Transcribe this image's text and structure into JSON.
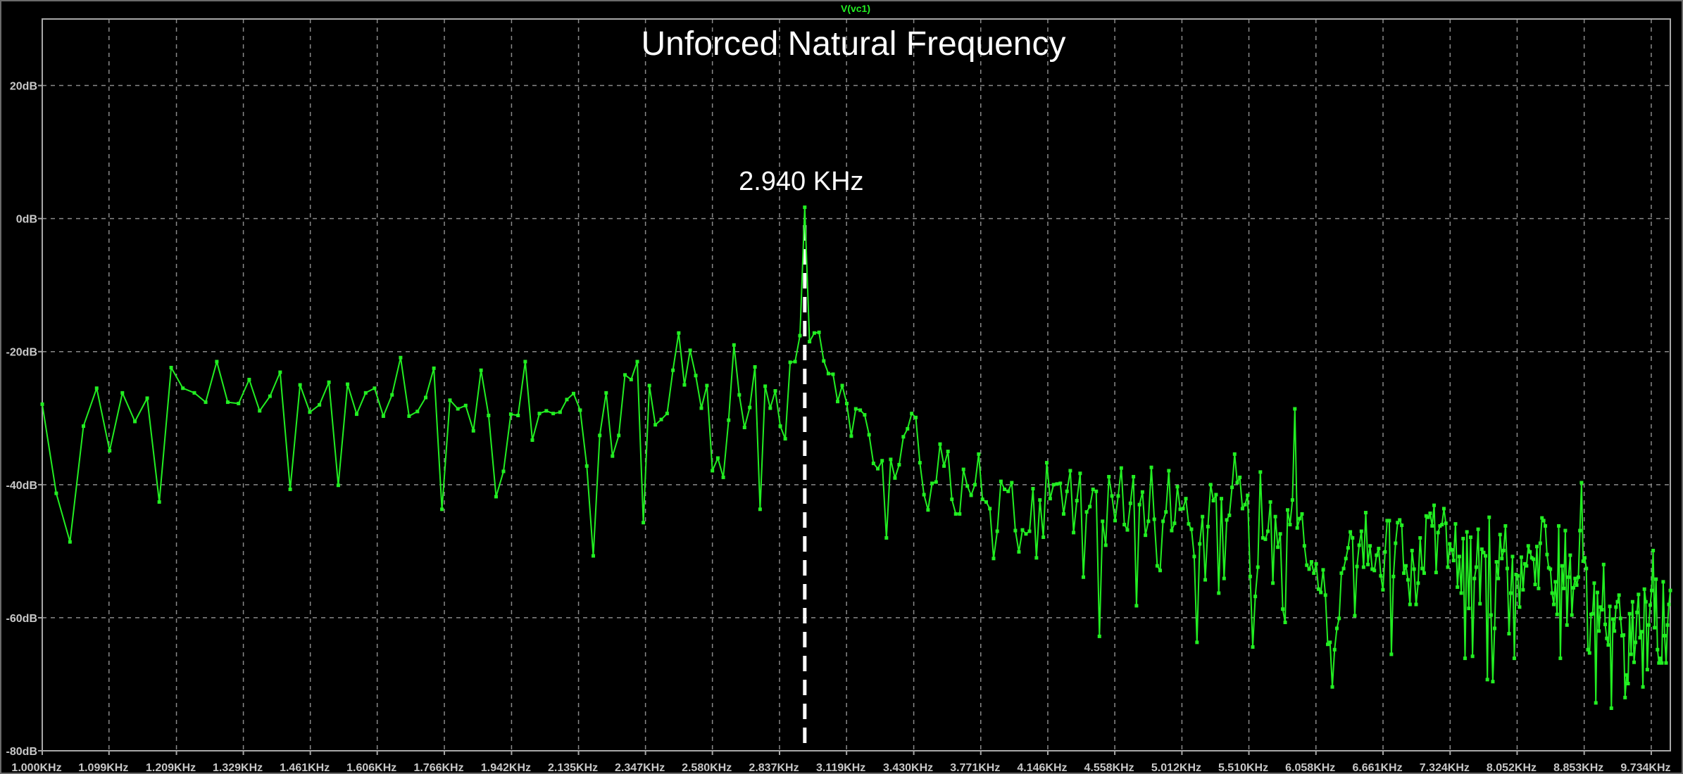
{
  "chart_data": {
    "type": "line",
    "title": "Unforced Natural Frequency",
    "trace_label": "V(vc1)",
    "x_scale": "log",
    "xlim_khz": [
      1.0,
      10.0
    ],
    "ylim_db": [
      -80,
      30
    ],
    "grid": true,
    "x_tick_values_khz": [
      1.0,
      1.099,
      1.209,
      1.329,
      1.461,
      1.606,
      1.766,
      1.942,
      2.135,
      2.347,
      2.58,
      2.837,
      3.119,
      3.43,
      3.771,
      4.146,
      4.558,
      5.012,
      5.51,
      6.058,
      6.661,
      7.324,
      8.052,
      8.853,
      9.734
    ],
    "x_tick_labels": [
      "1.000KHz",
      "1.099KHz",
      "1.209KHz",
      "1.329KHz",
      "1.461KHz",
      "1.606KHz",
      "1.766KHz",
      "1.942KHz",
      "2.135KHz",
      "2.347KHz",
      "2.580KHz",
      "2.837KHz",
      "3.119KHz",
      "3.430KHz",
      "3.771KHz",
      "4.146KHz",
      "4.558KHz",
      "5.012KHz",
      "5.510KHz",
      "6.058KHz",
      "6.661KHz",
      "7.324KHz",
      "8.052KHz",
      "8.853KHz",
      "9.734KHz"
    ],
    "y_tick_values": [
      20,
      0,
      -20,
      -40,
      -60,
      -80
    ],
    "y_tick_labels": [
      "20dB",
      "0dB",
      "-20dB",
      "-40dB",
      "-60dB",
      "-80dB"
    ],
    "annotation": {
      "frequency_khz": 2.94,
      "label": "2.940 KHz"
    },
    "series": [
      {
        "x_start_khz": 1.0,
        "x_step_khz": 0.02,
        "y_db": [
          -27.9,
          -41.3,
          -48.6,
          -31.2,
          -25.5,
          -34.9,
          -26.2,
          -30.5,
          -27.0,
          -42.6,
          -22.4,
          -25.5,
          -26.2,
          -27.6,
          -21.5,
          -27.6,
          -27.8,
          -24.2,
          -28.9,
          -26.7,
          -23.1,
          -40.7,
          -25.0,
          -29.1,
          -28.0,
          -24.6,
          -40.1,
          -24.9,
          -29.4,
          -26.2,
          -25.5,
          -29.7,
          -26.5,
          -20.9,
          -29.7,
          -29.0,
          -26.9,
          -22.5,
          -43.7,
          -27.3,
          -28.6,
          -28.1,
          -31.9,
          -22.8,
          -29.6,
          -41.8,
          -38.0,
          -29.4,
          -29.6,
          -21.5,
          -33.3,
          -29.3,
          -28.9,
          -29.3,
          -29.1,
          -27.2,
          -26.3,
          -28.8,
          -37.2,
          -50.7,
          -32.6,
          -26.2,
          -35.7,
          -32.6,
          -23.5,
          -24.2,
          -21.5,
          -45.7,
          -25.1,
          -31.0,
          -30.2,
          -29.3,
          -22.8,
          -17.2,
          -25.0,
          -19.8,
          -23.6,
          -28.5,
          -25.1,
          -37.9,
          -36.0,
          -38.9,
          -30.3,
          -19.0,
          -26.5,
          -31.4,
          -28.4,
          -22.3,
          -43.7,
          -25.2,
          -28.5,
          -25.9,
          -31.2,
          -33.1,
          -21.6,
          -21.5,
          -17.6,
          1.7,
          -18.5,
          -17.2,
          -17.1,
          -21.4,
          -23.3,
          -23.4,
          -27.5,
          -25.1,
          -27.8,
          -32.7,
          -28.6,
          -28.8,
          -29.5,
          -32.5,
          -36.8,
          -37.6,
          -36.4,
          -48.0,
          -36.2,
          -39.0,
          -37.0,
          -32.8,
          -31.6,
          -29.3,
          -29.9,
          -36.7,
          -41.5,
          -43.8,
          -39.8,
          -39.6,
          -33.9,
          -37.2,
          -35.0,
          -42.2,
          -44.4,
          -44.4,
          -37.7,
          -40.2,
          -41.6,
          -40.0,
          -35.4,
          -42.2,
          -42.6,
          -43.6,
          -51.1,
          -47.0,
          -39.5,
          -40.7,
          -41.0,
          -39.7,
          -46.9,
          -50.1,
          -46.8,
          -47.4,
          -47.0,
          -40.6,
          -51.0,
          -42.3,
          -47.9,
          -36.7,
          -42.1,
          -40.0,
          -39.9,
          -39.8,
          -44.4,
          -41.0,
          -37.9,
          -47.2,
          -42.4,
          -38.3,
          -53.9,
          -44.1,
          -43.3,
          -40.7,
          -41.0,
          -62.8,
          -45.5,
          -49.1,
          -38.8,
          -41.7,
          -45.4,
          -41.7,
          -37.5,
          -46.0,
          -46.8,
          -42.8,
          -38.8,
          -58.2,
          -43.0,
          -41.1,
          -47.6,
          -45.5,
          -37.4,
          -45.2,
          -52.2,
          -52.9,
          -45.5,
          -44.1,
          -37.9,
          -46.9,
          -45.8,
          -40.3,
          -43.7,
          -43.6,
          -42.1,
          -45.9,
          -46.7,
          -50.8,
          -63.7,
          -48.9,
          -44.8,
          -54.3,
          -46.3,
          -40.0,
          -42.4,
          -41.5,
          -56.3,
          -42.1,
          -54.1,
          -45.3,
          -44.6,
          -40.4,
          -35.4,
          -39.7,
          -38.9,
          -43.6,
          -43.0,
          -41.6,
          -53.8,
          -64.4,
          -56.8,
          -52.4,
          -38.1,
          -48.0,
          -48.2,
          -47.0,
          -42.6,
          -54.8,
          -44.8,
          -49.4,
          -47.4,
          -58.7,
          -60.7,
          -43.8,
          -46.0,
          -42.3,
          -28.6,
          -46.5,
          -45.1,
          -44.4,
          -49.2,
          -52.1,
          -52.7,
          -51.6,
          -53.3,
          -51.9,
          -55.7,
          -56.2,
          -52.8,
          -56.6,
          -64.0,
          -63.7,
          -70.4,
          -64.8,
          -61.6,
          -60.1,
          -53.3,
          -52.6,
          -51.1,
          -49.5,
          -47.1,
          -48.0,
          -59.7,
          -52.3,
          -49.1,
          -47.0,
          -52.4,
          -44.2,
          -52.0,
          -49.2,
          -52.7,
          -52.9,
          -50.6,
          -49.6,
          -53.7,
          -55.8,
          -50.1,
          -45.4,
          -45.4,
          -65.5,
          -53.8,
          -48.8,
          -45.7,
          -45.3,
          -46.1,
          -53.3,
          -52.2,
          -54.3,
          -58.0,
          -49.9,
          -52.7,
          -58.0,
          -54.8,
          -48.0,
          -52.6,
          -53.3,
          -44.7,
          -44.9,
          -44.3,
          -46.2,
          -43.1,
          -53.2,
          -47.2,
          -46.2,
          -46.0,
          -43.6,
          -45.8,
          -52.4,
          -48.9,
          -49.8,
          -51.4,
          -45.9,
          -55.4,
          -50.8,
          -56.3,
          -48.1,
          -66.1,
          -47.1,
          -58.6,
          -47.9,
          -65.8,
          -54.1,
          -52.4,
          -46.7,
          -57.9,
          -49.7,
          -50.2,
          -50.7,
          -69.3,
          -44.9,
          -59.6,
          -69.6,
          -61.6,
          -51.6,
          -54.1,
          -47.5,
          -51.1,
          -49.9,
          -46.2,
          -52.6,
          -62.4,
          -56.3,
          -50.8,
          -66.1,
          -53.5,
          -53.7,
          -58.4,
          -50.9,
          -55.8,
          -51.9,
          -52.2,
          -49.2,
          -50.1,
          -51.0,
          -51.2,
          -55.0,
          -49.3,
          -55.6,
          -48.8,
          -45.0,
          -45.4,
          -46.2,
          -50.5,
          -52.5,
          -52.7,
          -56.3,
          -58.0,
          -54.6,
          -59.5,
          -46.2,
          -66.1,
          -52.2,
          -55.6,
          -46.9,
          -61.1,
          -53.9,
          -50.6,
          -59.6,
          -55.5,
          -54.1,
          -55.1,
          -53.9,
          -46.9,
          -39.7,
          -51.5,
          -51.0,
          -52.6,
          -64.8,
          -65.3,
          -59.5,
          -59.4,
          -54.8,
          -72.8,
          -56.2,
          -62.0,
          -58.4,
          -58.8,
          -52.0,
          -61.0,
          -63.1,
          -64.1,
          -58.3,
          -73.6,
          -60.2,
          -62.0,
          -58.4,
          -57.6,
          -56.6,
          -60.1,
          -62.7,
          -62.6,
          -72.0,
          -68.6,
          -69.9,
          -59.4,
          -65.5,
          -57.6,
          -66.7,
          -63.7,
          -59.2,
          -56.5,
          -63.0,
          -62.1,
          -70.4,
          -55.7,
          -57.6,
          -67.8,
          -61.1,
          -58.1,
          -55.9,
          -49.9,
          -61.5,
          -54.2,
          -64.8,
          -66.8,
          -66.1,
          -66.8,
          -54.6,
          -62.7,
          -66.8,
          -61.1,
          -58.0,
          -55.9
        ]
      }
    ]
  },
  "colors": {
    "background": "#000000",
    "trace": "#22ee22",
    "grid": "#8a8a8a",
    "frame": "#a8a8a8",
    "axis_text": "#c8c8c8",
    "annotation": "#ffffff"
  }
}
